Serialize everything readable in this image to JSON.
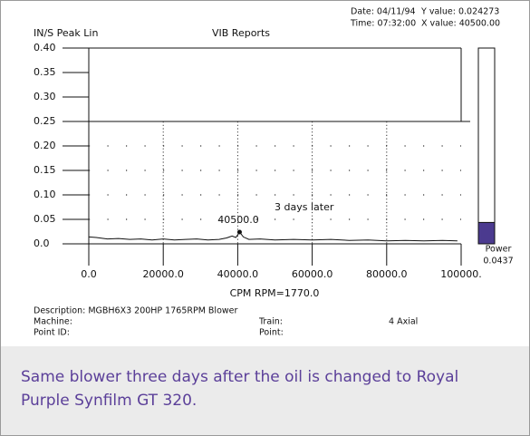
{
  "chart_data": {
    "type": "line",
    "title": "VIB Reports",
    "y_label": "IN/S Peak Lin",
    "x_label": "CPM  RPM=1770.0",
    "info": [
      "Date: 04/11/94",
      "Time: 07:32:00",
      "Y value: 0.024273",
      "X value: 40500.00"
    ],
    "annotations": [
      "3 days later",
      "40500.0"
    ],
    "x": [
      0,
      2000,
      5000,
      8000,
      11000,
      14000,
      17000,
      20000,
      23000,
      26000,
      29000,
      32000,
      35000,
      37000,
      38500,
      39500,
      40500,
      41500,
      43000,
      46000,
      50000,
      55000,
      60000,
      65000,
      70000,
      75000,
      80000,
      85000,
      90000,
      95000,
      99000
    ],
    "series": [
      {
        "name": null,
        "color": "#111111",
        "values": [
          0.014,
          0.013,
          0.01,
          0.011,
          0.009,
          0.01,
          0.008,
          0.01,
          0.008,
          0.009,
          0.01,
          0.008,
          0.009,
          0.012,
          0.016,
          0.013,
          0.024,
          0.014,
          0.009,
          0.01,
          0.008,
          0.009,
          0.008,
          0.009,
          0.007,
          0.008,
          0.006,
          0.007,
          0.006,
          0.007,
          0.006
        ]
      }
    ],
    "xlim": [
      0,
      100000
    ],
    "xticks": [
      {
        "value": 0,
        "label": "0.0"
      },
      {
        "value": 20000,
        "label": "20000.0"
      },
      {
        "value": 40000,
        "label": "40000.0"
      },
      {
        "value": 60000,
        "label": "60000.0"
      },
      {
        "value": 80000,
        "label": "80000.0"
      },
      {
        "value": 100000,
        "label": "100000."
      }
    ],
    "ylim": [
      0,
      0.4
    ],
    "yticks": [
      {
        "value": 0,
        "label": "0.0"
      },
      0.05,
      {
        "value": 0.1,
        "label": "0.10"
      },
      0.15,
      {
        "value": 0.2,
        "label": "0.20"
      },
      0.25,
      {
        "value": 0.3,
        "label": "0.30"
      },
      0.35,
      {
        "value": 0.4,
        "label": "0.40"
      }
    ],
    "grid": true,
    "power": {
      "label": "Power",
      "value": 0.0437,
      "color": "#4b3a8f"
    }
  },
  "footer": {
    "description": "Description:  MGBH6X3  200HP  1765RPM  Blower",
    "machine": "Machine:",
    "point_id": "Point ID:",
    "train": "Train:",
    "point": "Point:",
    "train_value": "4 Axial"
  },
  "caption": "Same blower three days after the oil is changed to Royal Purple Synfilm GT 320."
}
